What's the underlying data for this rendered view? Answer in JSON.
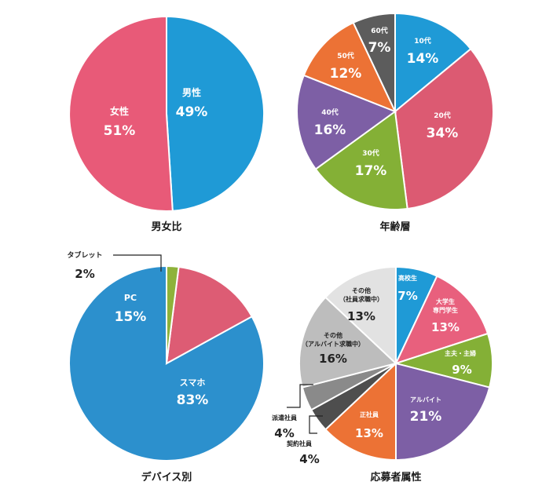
{
  "chart_data": [
    {
      "type": "pie",
      "title": "男女比",
      "slices": [
        {
          "name": "男性",
          "value": 49,
          "label": "49%",
          "color": "#1f9ad6"
        },
        {
          "name": "女性",
          "value": 51,
          "label": "51%",
          "color": "#e85a78"
        }
      ]
    },
    {
      "type": "pie",
      "title": "年齢層",
      "slices": [
        {
          "name": "10代",
          "value": 14,
          "label": "14%",
          "color": "#1f9ad6"
        },
        {
          "name": "20代",
          "value": 34,
          "label": "34%",
          "color": "#dc5a72"
        },
        {
          "name": "30代",
          "value": 17,
          "label": "17%",
          "color": "#84b036"
        },
        {
          "name": "40代",
          "value": 16,
          "label": "16%",
          "color": "#7d5fa5"
        },
        {
          "name": "50代",
          "value": 12,
          "label": "12%",
          "color": "#ec7235"
        },
        {
          "name": "60代",
          "value": 7,
          "label": "7%",
          "color": "#5c5c5c"
        }
      ]
    },
    {
      "type": "pie",
      "title": "デバイス別",
      "slices": [
        {
          "name": "スマホ",
          "value": 83,
          "label": "83%",
          "color": "#2c90cd"
        },
        {
          "name": "PC",
          "value": 15,
          "label": "15%",
          "color": "#dd5c74"
        },
        {
          "name": "タブレット",
          "value": 2,
          "label": "2%",
          "color": "#8eb23a"
        }
      ]
    },
    {
      "type": "pie",
      "title": "応募者属性",
      "slices": [
        {
          "name": "高校生",
          "value": 7,
          "label": "7%",
          "color": "#1f9ad6"
        },
        {
          "name": "大学生\n専門学生",
          "value": 13,
          "label": "13%",
          "color": "#e8607d"
        },
        {
          "name": "主夫・主婦",
          "value": 9,
          "label": "9%",
          "color": "#84b036"
        },
        {
          "name": "アルバイト",
          "value": 21,
          "label": "21%",
          "color": "#7d5fa5"
        },
        {
          "name": "正社員",
          "value": 13,
          "label": "13%",
          "color": "#ec7235"
        },
        {
          "name": "契約社員",
          "value": 4,
          "label": "4%",
          "color": "#4e4e4e"
        },
        {
          "name": "派遣社員",
          "value": 4,
          "label": "4%",
          "color": "#8a8a8a"
        },
        {
          "name": "その他\n（アルバイト求職中）",
          "value": 16,
          "label": "16%",
          "color": "#bdbdbd"
        },
        {
          "name": "その他\n（社員求職中）",
          "value": 13,
          "label": "13%",
          "color": "#e2e2e2"
        }
      ]
    }
  ]
}
